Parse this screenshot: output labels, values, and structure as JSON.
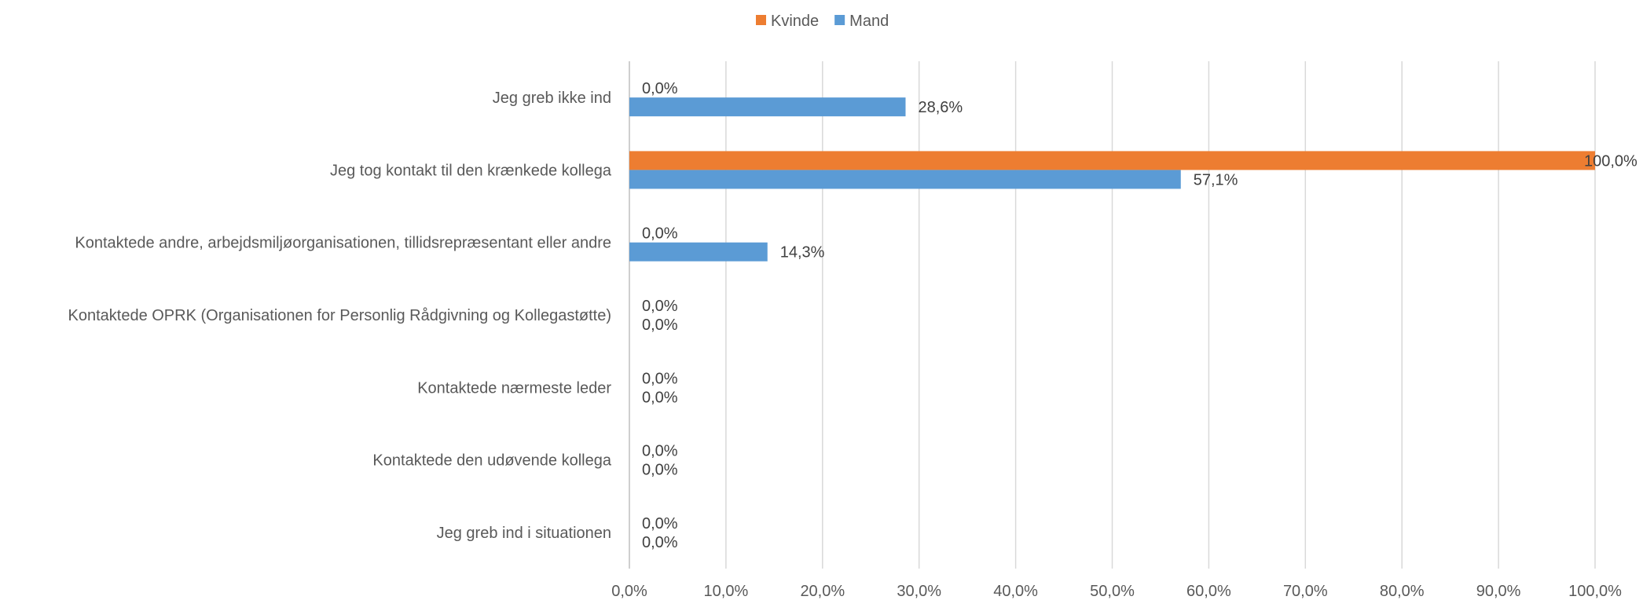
{
  "chart_data": {
    "type": "bar",
    "orientation": "horizontal",
    "categories": [
      "Jeg greb ikke ind",
      "Jeg tog kontakt til den krænkede kollega",
      "Kontaktede andre, arbejdsmiljøorganisationen, tillidsrepræsentant eller andre",
      "Kontaktede OPRK (Organisationen for Personlig Rådgivning og Kollegastøtte)",
      "Kontaktede nærmeste leder",
      "Kontaktede den udøvende kollega",
      "Jeg greb ind i situationen"
    ],
    "series": [
      {
        "name": "Kvinde",
        "color": "#ED7D31",
        "values": [
          0.0,
          100.0,
          0.0,
          0.0,
          0.0,
          0.0,
          0.0
        ],
        "labels": [
          "0,0%",
          "100,0%",
          "0,0%",
          "0,0%",
          "0,0%",
          "0,0%",
          "0,0%"
        ]
      },
      {
        "name": "Mand",
        "color": "#5B9BD5",
        "values": [
          28.6,
          57.1,
          14.3,
          0.0,
          0.0,
          0.0,
          0.0
        ],
        "labels": [
          "28,6%",
          "57,1%",
          "14,3%",
          "0,0%",
          "0,0%",
          "0,0%",
          "0,0%"
        ]
      }
    ],
    "xlim": [
      0,
      100
    ],
    "xticks": [
      0,
      10,
      20,
      30,
      40,
      50,
      60,
      70,
      80,
      90,
      100
    ],
    "xtick_labels": [
      "0,0%",
      "10,0%",
      "20,0%",
      "30,0%",
      "40,0%",
      "50,0%",
      "60,0%",
      "70,0%",
      "80,0%",
      "90,0%",
      "100,0%"
    ],
    "grid": true,
    "legend_position": "top-center",
    "title": "",
    "xlabel": "",
    "ylabel": ""
  }
}
